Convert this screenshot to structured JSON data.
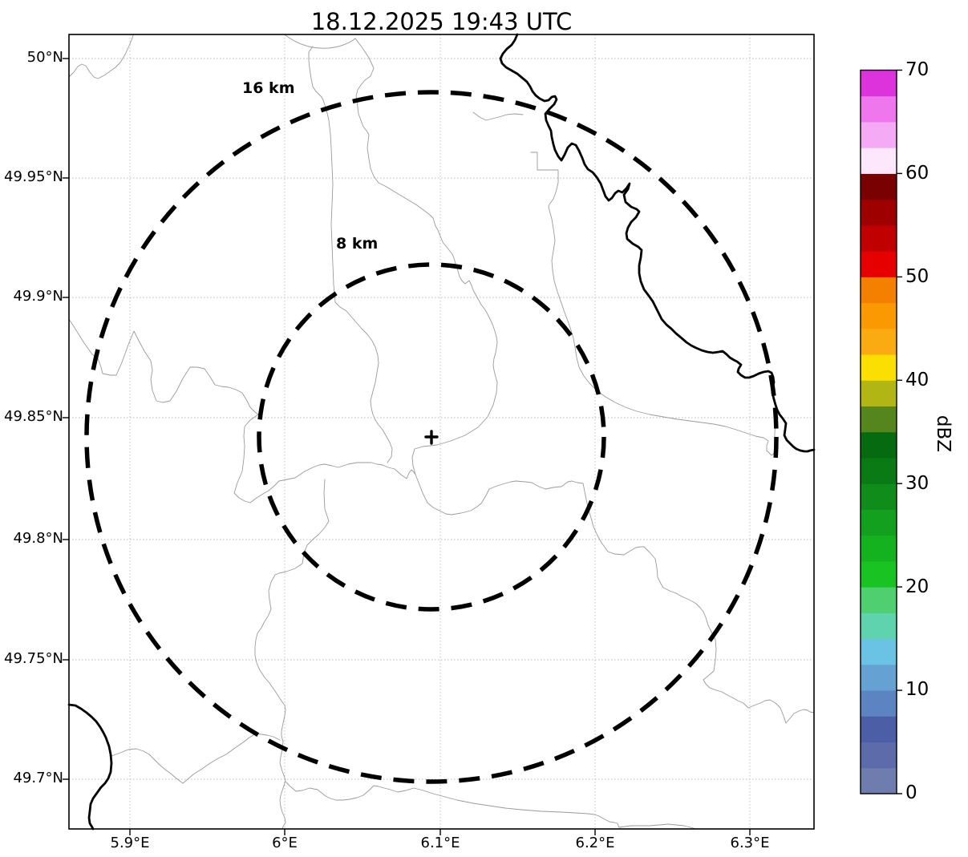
{
  "title": "18.12.2025 19:43 UTC",
  "axes": {
    "x_tick_labels": [
      "5.9°E",
      "6°E",
      "6.1°E",
      "6.2°E",
      "6.3°E"
    ],
    "y_tick_labels": [
      "50°N",
      "49.95°N",
      "49.9°N",
      "49.85°N",
      "49.8°N",
      "49.75°N",
      "49.7°N"
    ]
  },
  "range_rings": {
    "outer_label": "16 km",
    "inner_label": "8 km",
    "center_marker": "+"
  },
  "colorbar": {
    "axis_label": "dBZ",
    "tick_labels": [
      "70",
      "60",
      "50",
      "40",
      "30",
      "20",
      "10",
      "0"
    ],
    "colors_low_to_high": [
      "#6e7cae",
      "#5d6bab",
      "#4c5ea6",
      "#5b84c0",
      "#66a1d3",
      "#6ac3e4",
      "#5fd3ae",
      "#4fcf70",
      "#18c322",
      "#15b220",
      "#12a01e",
      "#0f8c1a",
      "#0a7a15",
      "#056a10",
      "#55851d",
      "#b2b615",
      "#fcdf02",
      "#fbab12",
      "#fb9902",
      "#f58000",
      "#e60000",
      "#c00000",
      "#9e0000",
      "#7a0101",
      "#fce7fc",
      "#f5aaf5",
      "#ee77ee",
      "#dd33dd"
    ]
  },
  "colors": {
    "background": "#ffffff",
    "boundary": "#9a9a9a",
    "river": "#000000",
    "grid": "#bbbbbb",
    "range_ring": "#000000",
    "frame": "#000000"
  },
  "chart_data": {
    "type": "map",
    "title": "18.12.2025 19:43 UTC",
    "x_axis": {
      "ticks_deg_east": [
        5.9,
        6.0,
        6.1,
        6.2,
        6.3
      ],
      "range_deg_east": [
        5.862,
        6.342
      ]
    },
    "y_axis": {
      "ticks_deg_north": [
        50.0,
        49.95,
        49.9,
        49.85,
        49.8,
        49.75,
        49.7
      ],
      "range_deg_north": [
        49.678,
        50.009
      ]
    },
    "radar_center": {
      "lon_deg_east": 6.094,
      "lat_deg_north": 49.843
    },
    "range_rings_km": [
      8,
      16
    ],
    "colorbar_scale": {
      "label": "dBZ",
      "min": 0,
      "max": 70,
      "segment_step": 2.5,
      "tick_step": 10
    },
    "reflectivity_echoes": "none visible on map (clear scan)",
    "grid": "dotted graticule at tick positions",
    "legend_position": "right vertical colorbar"
  }
}
